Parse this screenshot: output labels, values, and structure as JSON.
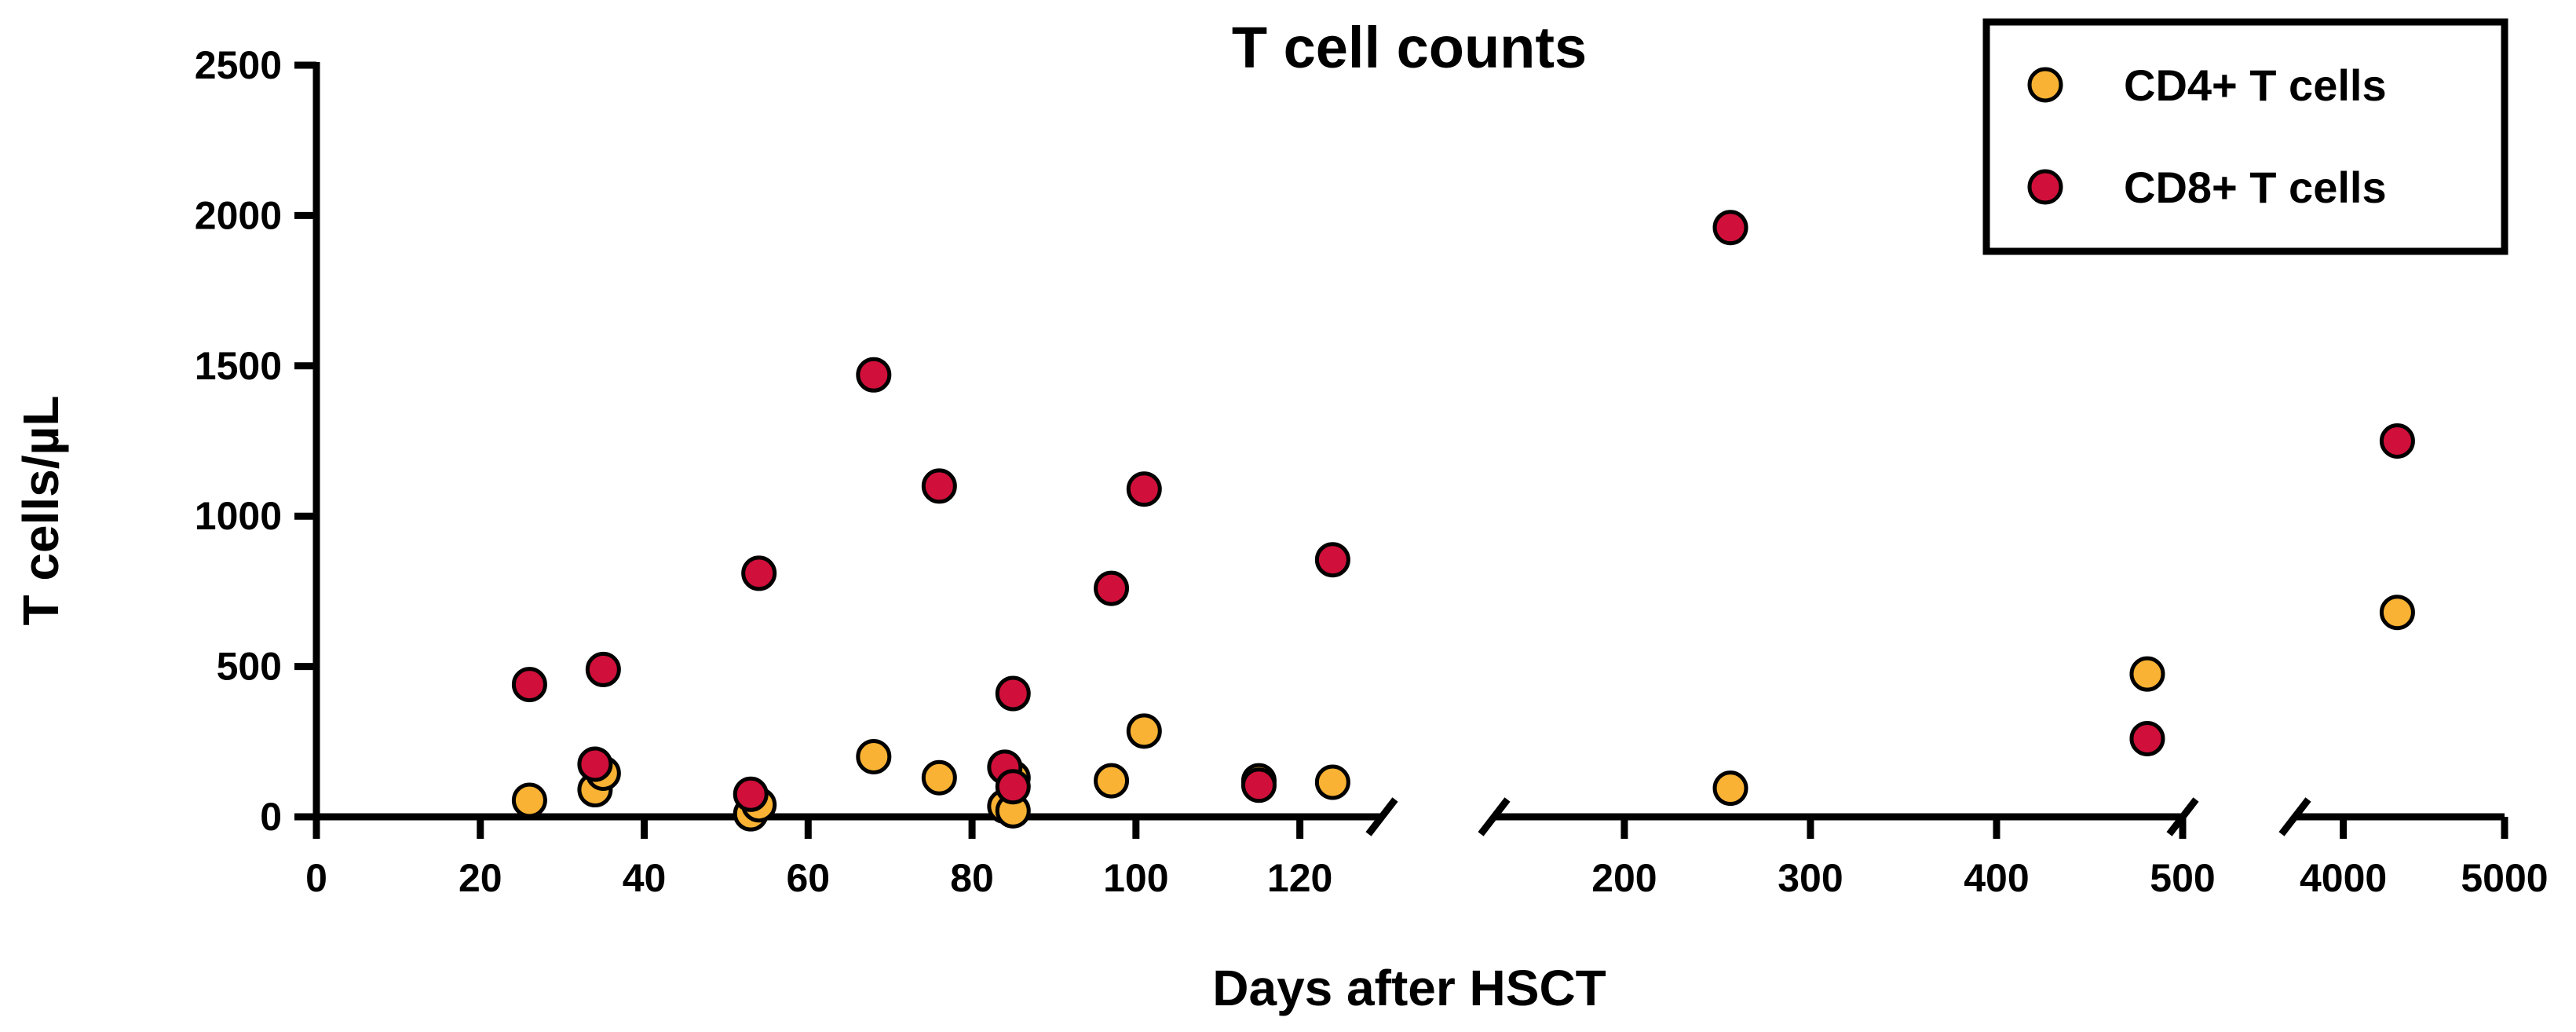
{
  "chart_data": {
    "type": "scatter",
    "title": "T cell counts",
    "xlabel": "Days after HSCT",
    "ylabel": "T cells/µL",
    "ylim": [
      0,
      2500
    ],
    "yticks": [
      0,
      500,
      1000,
      1500,
      2000,
      2500
    ],
    "y_tick_labels": [
      "0",
      "500",
      "1000",
      "1500",
      "2000",
      "2500"
    ],
    "grid": false,
    "legend_position": "top-right",
    "x_axis_segments": [
      {
        "range": [
          0,
          130
        ],
        "ticks": [
          0,
          20,
          40,
          60,
          80,
          100,
          120
        ],
        "tick_labels": [
          "0",
          "20",
          "40",
          "60",
          "80",
          "100",
          "120"
        ]
      },
      {
        "range": [
          130,
          500
        ],
        "ticks": [
          200,
          300,
          400,
          500
        ],
        "tick_labels": [
          "200",
          "300",
          "400",
          "500"
        ]
      },
      {
        "range": [
          3700,
          5000
        ],
        "ticks": [
          4000,
          5000
        ],
        "tick_labels": [
          "4000",
          "5000"
        ]
      }
    ],
    "series": [
      {
        "name": "CD4+ T cells",
        "color": "#F9B233",
        "points": [
          {
            "x": 26,
            "y": 55
          },
          {
            "x": 34,
            "y": 90
          },
          {
            "x": 35,
            "y": 145
          },
          {
            "x": 53,
            "y": 10
          },
          {
            "x": 54,
            "y": 40
          },
          {
            "x": 68,
            "y": 200
          },
          {
            "x": 76,
            "y": 130
          },
          {
            "x": 84,
            "y": 35
          },
          {
            "x": 85,
            "y": 20
          },
          {
            "x": 85,
            "y": 130
          },
          {
            "x": 97,
            "y": 120
          },
          {
            "x": 101,
            "y": 285
          },
          {
            "x": 115,
            "y": 120
          },
          {
            "x": 124,
            "y": 115
          },
          {
            "x": 257,
            "y": 95
          },
          {
            "x": 481,
            "y": 475
          },
          {
            "x": 4335,
            "y": 680
          }
        ]
      },
      {
        "name": "CD8+ T cells",
        "color": "#D0103A",
        "points": [
          {
            "x": 26,
            "y": 440
          },
          {
            "x": 34,
            "y": 175
          },
          {
            "x": 35,
            "y": 490
          },
          {
            "x": 53,
            "y": 75
          },
          {
            "x": 54,
            "y": 810
          },
          {
            "x": 68,
            "y": 1470
          },
          {
            "x": 76,
            "y": 1100
          },
          {
            "x": 84,
            "y": 165
          },
          {
            "x": 85,
            "y": 410
          },
          {
            "x": 85,
            "y": 100
          },
          {
            "x": 97,
            "y": 760
          },
          {
            "x": 101,
            "y": 1090
          },
          {
            "x": 115,
            "y": 105
          },
          {
            "x": 124,
            "y": 855
          },
          {
            "x": 257,
            "y": 1960
          },
          {
            "x": 481,
            "y": 260
          },
          {
            "x": 4335,
            "y": 1250
          }
        ]
      }
    ]
  }
}
